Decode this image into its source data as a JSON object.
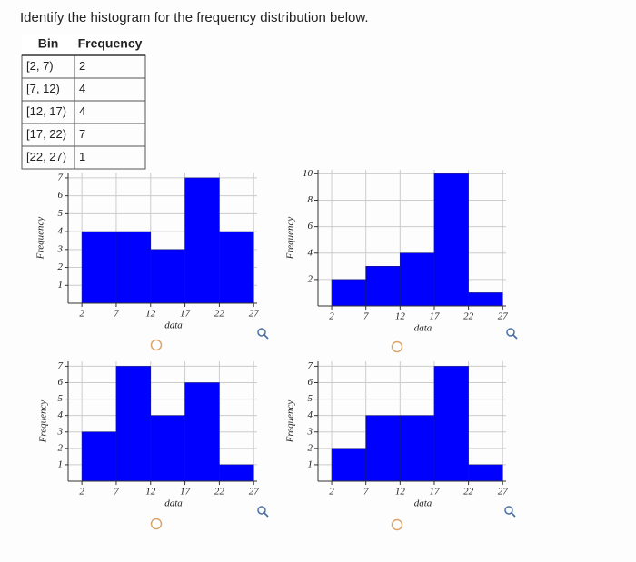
{
  "question": "Identify the histogram for the frequency distribution below.",
  "table": {
    "header": [
      "Bin",
      "Frequency"
    ],
    "rows": [
      [
        "[2, 7)",
        2
      ],
      [
        "[7, 12)",
        4
      ],
      [
        "[12, 17)",
        4
      ],
      [
        "[17, 22)",
        7
      ],
      [
        "[22, 27)",
        1
      ]
    ]
  },
  "chart_data": [
    {
      "type": "histogram",
      "bins": [
        2,
        7,
        12,
        17,
        22,
        27
      ],
      "counts": [
        4,
        4,
        3,
        7,
        4
      ],
      "color": "#0000ff",
      "xlabel": "data",
      "ylabel": "Frequency",
      "xlim": [
        0,
        27.5
      ],
      "ylim": [
        0,
        7.3
      ],
      "xticks": [
        2,
        7,
        12,
        17,
        22,
        27
      ],
      "yticks": [
        1,
        2,
        3,
        4,
        5,
        6,
        7
      ],
      "grid": true
    },
    {
      "type": "histogram",
      "bins": [
        2,
        7,
        12,
        17,
        22,
        27
      ],
      "counts": [
        2,
        3,
        4,
        10,
        1
      ],
      "color": "#0000ff",
      "xlabel": "data",
      "ylabel": "Frequency",
      "xlim": [
        0,
        27.5
      ],
      "ylim": [
        0,
        10.3
      ],
      "xticks": [
        2,
        7,
        12,
        17,
        22,
        27
      ],
      "yticks": [
        2,
        4,
        6,
        8,
        10
      ],
      "grid": true
    },
    {
      "type": "histogram",
      "bins": [
        2,
        7,
        12,
        17,
        22,
        27
      ],
      "counts": [
        3,
        7,
        4,
        6,
        1
      ],
      "color": "#0000ff",
      "xlabel": "data",
      "ylabel": "Frequency",
      "xlim": [
        0,
        27.5
      ],
      "ylim": [
        0,
        7.3
      ],
      "xticks": [
        2,
        7,
        12,
        17,
        22,
        27
      ],
      "yticks": [
        1,
        2,
        3,
        4,
        5,
        6,
        7
      ],
      "grid": true
    },
    {
      "type": "histogram",
      "bins": [
        2,
        7,
        12,
        17,
        22,
        27
      ],
      "counts": [
        2,
        4,
        4,
        7,
        1
      ],
      "color": "#0000ff",
      "xlabel": "data",
      "ylabel": "Frequency",
      "xlim": [
        0,
        27.5
      ],
      "ylim": [
        0,
        7.3
      ],
      "xticks": [
        2,
        7,
        12,
        17,
        22,
        27
      ],
      "yticks": [
        1,
        2,
        3,
        4,
        5,
        6,
        7
      ],
      "grid": true
    }
  ]
}
